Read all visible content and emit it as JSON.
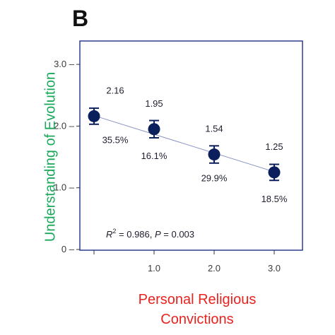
{
  "panel_label": "B",
  "chart_data": {
    "type": "scatter",
    "title": "",
    "xlabel": [
      "Personal Religious",
      "Convictions"
    ],
    "ylabel": "Understanding of Evolution",
    "xlim": [
      0,
      3.5
    ],
    "ylim": [
      0,
      3.5
    ],
    "xticks": [
      0,
      1.0,
      2.0,
      3.0
    ],
    "xtick_labels": [
      "",
      "1.0",
      "2.0",
      "3.0"
    ],
    "yticks": [
      0,
      1.0,
      2.0,
      3.0
    ],
    "ytick_labels": [
      "0",
      "1.0",
      "2.0",
      "3.0"
    ],
    "grid": false,
    "points": [
      {
        "x": 0,
        "y": 2.16,
        "err": 0.13,
        "value_label": "2.16",
        "pct_label": "35.5%"
      },
      {
        "x": 1,
        "y": 1.95,
        "err": 0.14,
        "value_label": "1.95",
        "pct_label": "16.1%"
      },
      {
        "x": 2,
        "y": 1.54,
        "err": 0.14,
        "value_label": "1.54",
        "pct_label": "29.9%"
      },
      {
        "x": 3,
        "y": 1.25,
        "err": 0.13,
        "value_label": "1.25",
        "pct_label": "18.5%"
      }
    ],
    "fit_line": {
      "x": [
        0,
        3
      ],
      "y": [
        2.17,
        1.26
      ]
    },
    "stats_text": {
      "r_symbol": "R",
      "r_sup": "2",
      "r_value": " = 0.986, ",
      "p_symbol": "P",
      "p_value": " = 0.003"
    },
    "colors": {
      "frame": "#2b3f8f",
      "marker": "#0b1f5c",
      "fit_line": "#8a93c4",
      "ylabel": "#1aa85a",
      "xlabel": "#e8231f"
    }
  }
}
